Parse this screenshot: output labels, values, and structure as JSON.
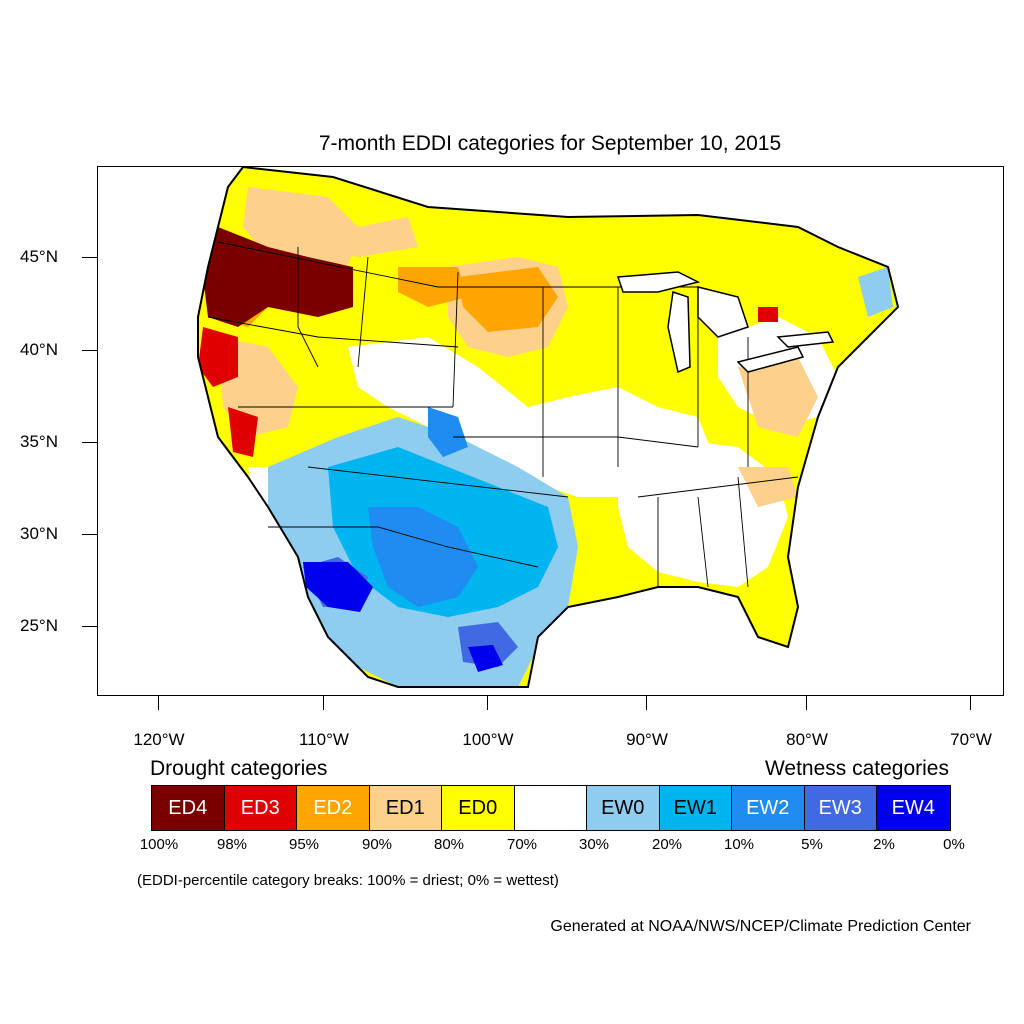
{
  "title": "7-month EDDI categories for September 10, 2015",
  "axes": {
    "lat_labels": [
      "45°N",
      "40°N",
      "35°N",
      "30°N",
      "25°N"
    ],
    "lon_labels": [
      "120°W",
      "110°W",
      "100°W",
      "90°W",
      "80°W",
      "70°W"
    ]
  },
  "legend": {
    "drought_heading": "Drought categories",
    "wetness_heading": "Wetness categories",
    "categories": [
      {
        "label": "ED4",
        "color": "#7a0000",
        "text_color": "#ffffff"
      },
      {
        "label": "ED3",
        "color": "#e00000",
        "text_color": "#ffffff"
      },
      {
        "label": "ED2",
        "color": "#ffa500",
        "text_color": "#ffffff"
      },
      {
        "label": "ED1",
        "color": "#fdd18b",
        "text_color": "#000000"
      },
      {
        "label": "ED0",
        "color": "#ffff00",
        "text_color": "#000000"
      },
      {
        "label": "",
        "color": "#ffffff",
        "text_color": "#000000"
      },
      {
        "label": "EW0",
        "color": "#8ecdef",
        "text_color": "#000000"
      },
      {
        "label": "EW1",
        "color": "#00b4f0",
        "text_color": "#000000"
      },
      {
        "label": "EW2",
        "color": "#1e8cf0",
        "text_color": "#ffffff"
      },
      {
        "label": "EW3",
        "color": "#4169e1",
        "text_color": "#ffffff"
      },
      {
        "label": "EW4",
        "color": "#0000ee",
        "text_color": "#ffffff"
      }
    ],
    "percentiles": [
      "100%",
      "98%",
      "95%",
      "90%",
      "80%",
      "70%",
      "30%",
      "20%",
      "10%",
      "5%",
      "2%",
      "0%"
    ]
  },
  "note": "(EDDI-percentile category breaks: 100% = driest; 0% = wettest)",
  "credit": "Generated at NOAA/NWS/NCEP/Climate Prediction Center"
}
